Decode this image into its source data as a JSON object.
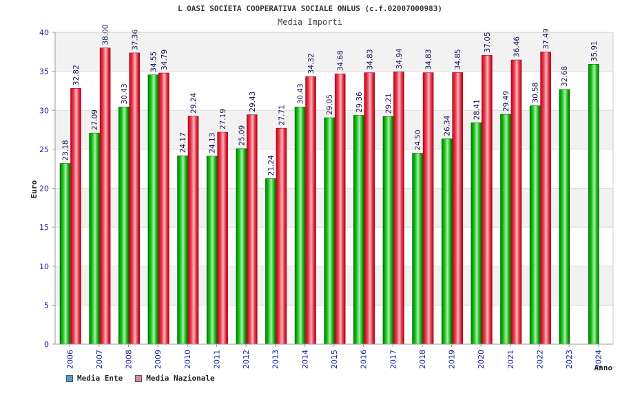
{
  "chart_data": {
    "type": "bar",
    "title": "L OASI SOCIETA COOPERATIVA SOCIALE ONLUS (c.f.02007000983)",
    "subtitle": "Media Importi",
    "xlabel": "Anno",
    "ylabel": "Euro",
    "ylim": [
      0,
      40
    ],
    "yticks": [
      0,
      5,
      10,
      15,
      20,
      25,
      30,
      35,
      40
    ],
    "grid": true,
    "legend_position": "bottom-left",
    "categories": [
      "2006",
      "2007",
      "2008",
      "2009",
      "2010",
      "2011",
      "2012",
      "2013",
      "2014",
      "2015",
      "2016",
      "2017",
      "2018",
      "2019",
      "2020",
      "2021",
      "2022",
      "2023",
      "2024"
    ],
    "series": [
      {
        "name": "Media Ente",
        "color": "#00aa00",
        "legend_color": "#5599dd",
        "values": [
          23.18,
          27.09,
          30.43,
          34.55,
          24.17,
          24.13,
          25.09,
          21.24,
          30.43,
          29.05,
          29.36,
          29.21,
          24.5,
          26.34,
          28.41,
          29.49,
          30.58,
          32.68,
          35.91
        ],
        "labels": [
          "23.18",
          "27.09",
          "30.43",
          "34.55",
          "24.17",
          "24.13",
          "25.09",
          "21.24",
          "30.43",
          "29.05",
          "29.36",
          "29.21",
          "24.50",
          "26.34",
          "28.41",
          "29.49",
          "30.58",
          "32.68",
          "35.91"
        ]
      },
      {
        "name": "Media Nazionale",
        "color": "#dd2233",
        "legend_color": "#dd88aa",
        "values": [
          32.82,
          38.0,
          37.36,
          34.79,
          29.24,
          27.19,
          29.43,
          27.71,
          34.32,
          34.68,
          34.83,
          34.94,
          34.83,
          34.85,
          37.05,
          36.46,
          37.49,
          null,
          null
        ],
        "labels": [
          "32.82",
          "38.00",
          "37.36",
          "34.79",
          "29.24",
          "27.19",
          "29.43",
          "27.71",
          "34.32",
          "34.68",
          "34.83",
          "34.94",
          "34.83",
          "34.85",
          "37.05",
          "36.46",
          "37.49",
          null,
          null
        ]
      }
    ]
  }
}
